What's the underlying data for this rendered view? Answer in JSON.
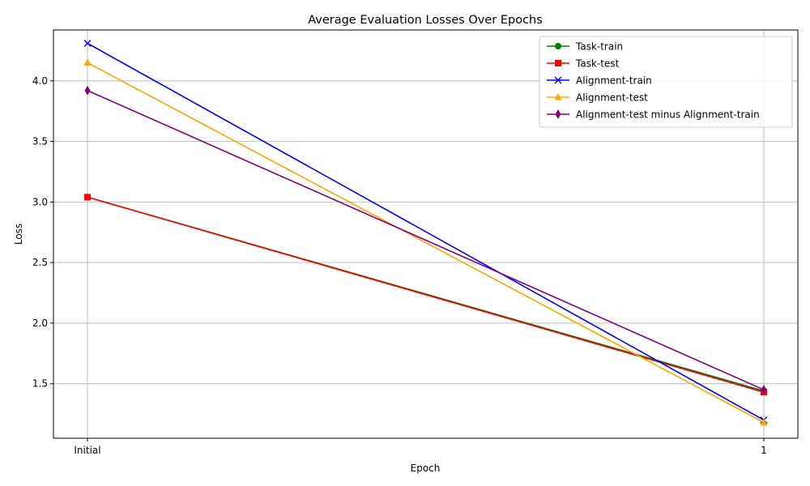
{
  "chart_data": {
    "type": "line",
    "title": "Average Evaluation Losses Over Epochs",
    "xlabel": "Epoch",
    "ylabel": "Loss",
    "categories": [
      "Initial",
      "1"
    ],
    "ylim": [
      1.05,
      4.42
    ],
    "yticks": [
      1.5,
      2.0,
      2.5,
      3.0,
      3.5,
      4.0
    ],
    "ytick_labels": [
      "1.5",
      "2.0",
      "2.5",
      "3.0",
      "3.5",
      "4.0"
    ],
    "grid": true,
    "legend_position": "top-right",
    "series": [
      {
        "name": "Task-train",
        "values": [
          3.04,
          1.44
        ],
        "color": "#008000",
        "marker": "circle"
      },
      {
        "name": "Task-test",
        "values": [
          3.04,
          1.43
        ],
        "color": "#ff0000",
        "marker": "square"
      },
      {
        "name": "Alignment-train",
        "values": [
          4.31,
          1.2
        ],
        "color": "#0000ff",
        "marker": "x"
      },
      {
        "name": "Alignment-test",
        "values": [
          4.15,
          1.18
        ],
        "color": "#ffa500",
        "marker": "triangle"
      },
      {
        "name": "Alignment-test minus Alignment-train",
        "values": [
          3.92,
          1.45
        ],
        "color": "#800080",
        "marker": "diamond"
      }
    ]
  }
}
